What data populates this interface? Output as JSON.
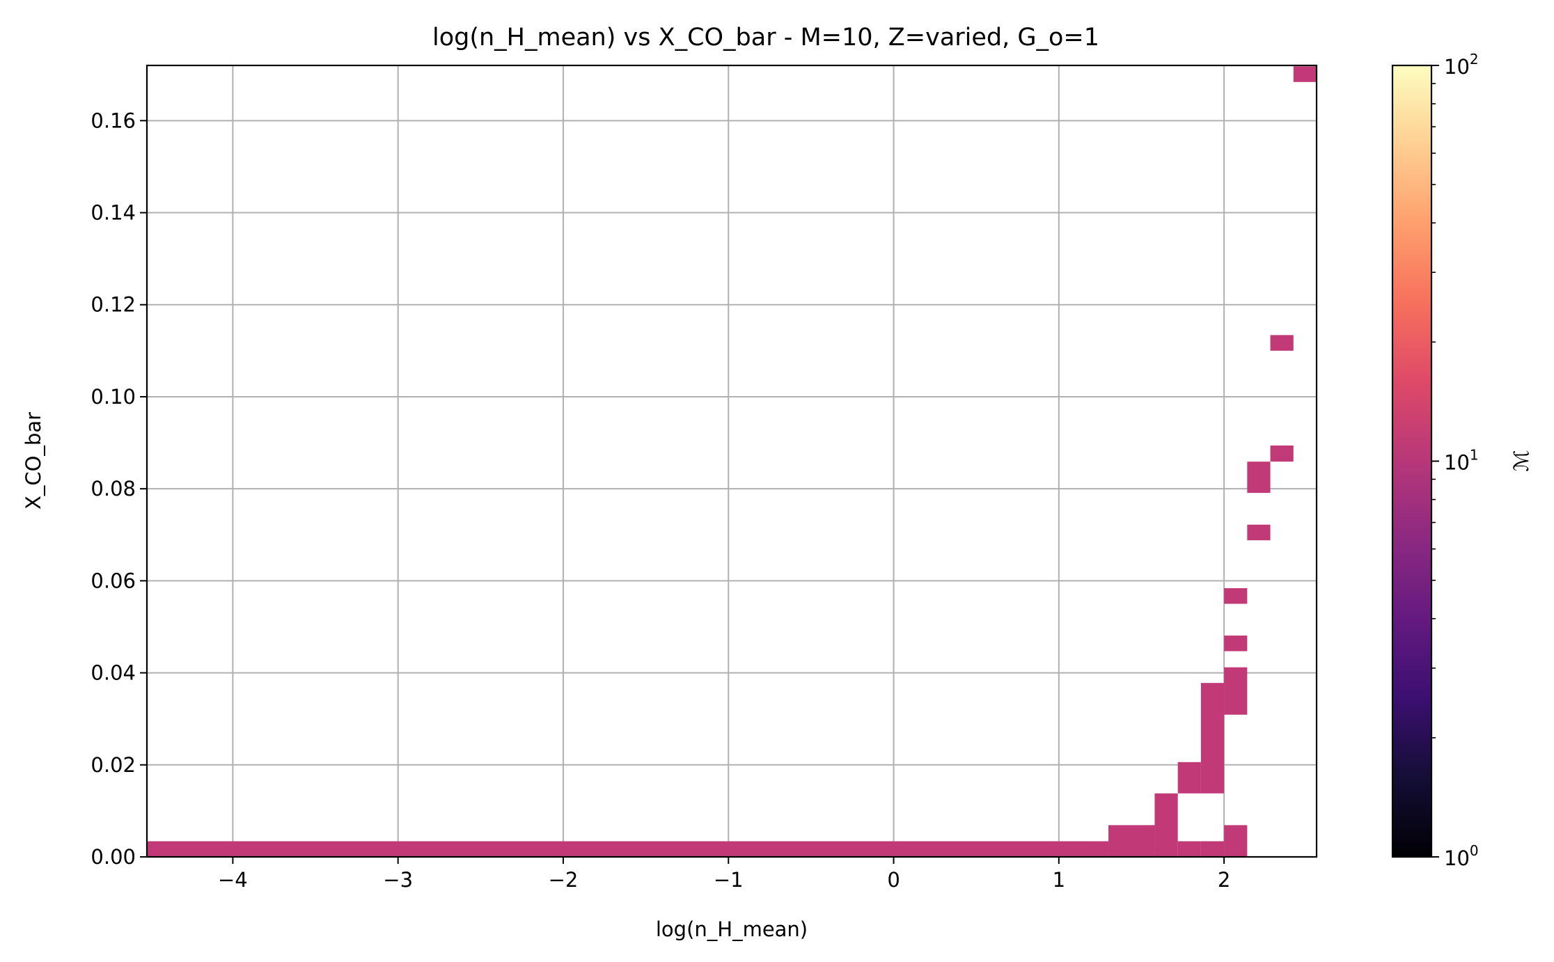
{
  "chart_data": {
    "type": "heatmap",
    "title": "log(n_H_mean) vs X_CO_bar - M=10, Z=varied, G_o=1",
    "xlabel": "log(n_H_mean)",
    "ylabel": "X_CO_bar",
    "xlim": [
      -4.52,
      2.56
    ],
    "ylim": [
      0.0,
      0.172
    ],
    "xticks": [
      -4,
      -3,
      -2,
      -1,
      0,
      1,
      2
    ],
    "xtick_labels": [
      "−4",
      "−3",
      "−2",
      "−1",
      "0",
      "1",
      "2"
    ],
    "yticks": [
      0.0,
      0.02,
      0.04,
      0.06,
      0.08,
      0.1,
      0.12,
      0.14,
      0.16
    ],
    "ytick_labels": [
      "0.00",
      "0.02",
      "0.04",
      "0.06",
      "0.08",
      "0.10",
      "0.12",
      "0.14",
      "0.16"
    ],
    "grid": true,
    "cell_color": "#c13a77",
    "cells": [
      {
        "x0": -4.52,
        "x1": 1.3,
        "y0": 0.0,
        "y1": 0.0034,
        "value": 10
      },
      {
        "x0": 1.3,
        "x1": 1.58,
        "y0": 0.0,
        "y1": 0.0069,
        "value": 10
      },
      {
        "x0": 1.58,
        "x1": 1.72,
        "y0": 0.0,
        "y1": 0.0138,
        "value": 10
      },
      {
        "x0": 1.72,
        "x1": 1.86,
        "y0": 0.0,
        "y1": 0.0034,
        "value": 10
      },
      {
        "x0": 1.72,
        "x1": 1.86,
        "y0": 0.0138,
        "y1": 0.0206,
        "value": 10
      },
      {
        "x0": 1.86,
        "x1": 2.0,
        "y0": 0.0,
        "y1": 0.0034,
        "value": 10
      },
      {
        "x0": 1.86,
        "x1": 2.0,
        "y0": 0.0138,
        "y1": 0.0378,
        "value": 10
      },
      {
        "x0": 2.0,
        "x1": 2.14,
        "y0": 0.0,
        "y1": 0.0069,
        "value": 10
      },
      {
        "x0": 2.0,
        "x1": 2.14,
        "y0": 0.0309,
        "y1": 0.0412,
        "value": 10
      },
      {
        "x0": 2.0,
        "x1": 2.14,
        "y0": 0.0447,
        "y1": 0.0481,
        "value": 10
      },
      {
        "x0": 2.0,
        "x1": 2.14,
        "y0": 0.055,
        "y1": 0.0584,
        "value": 10
      },
      {
        "x0": 2.14,
        "x1": 2.28,
        "y0": 0.0688,
        "y1": 0.0722,
        "value": 10
      },
      {
        "x0": 2.14,
        "x1": 2.28,
        "y0": 0.0791,
        "y1": 0.0859,
        "value": 10
      },
      {
        "x0": 2.28,
        "x1": 2.42,
        "y0": 0.0859,
        "y1": 0.0894,
        "value": 10
      },
      {
        "x0": 2.28,
        "x1": 2.42,
        "y0": 0.11,
        "y1": 0.1134,
        "value": 10
      },
      {
        "x0": 2.42,
        "x1": 2.56,
        "y0": 0.1684,
        "y1": 0.1718,
        "value": 10
      }
    ],
    "colorbar": {
      "label": "ℳ",
      "scale": "log",
      "range": [
        1,
        100
      ],
      "major_ticks": [
        {
          "value": 1,
          "base": "10",
          "exp": "0"
        },
        {
          "value": 10,
          "base": "10",
          "exp": "1"
        },
        {
          "value": 100,
          "base": "10",
          "exp": "2"
        }
      ],
      "colormap": "magma",
      "stops": [
        "#000004",
        "#140e36",
        "#3b0f70",
        "#641a80",
        "#8c2981",
        "#b73779",
        "#de4968",
        "#f7705c",
        "#fe9f6d",
        "#fecf92",
        "#fcfdbf"
      ]
    }
  }
}
